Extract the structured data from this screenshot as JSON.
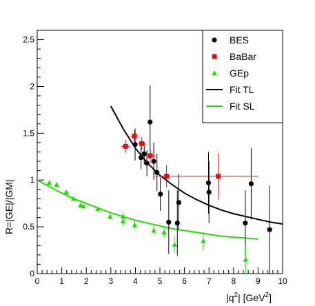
{
  "chart_data": {
    "type": "scatter",
    "xlabel": "|q",
    "xlabel_sup": "2",
    "xlabel_mid": "| [GeV",
    "xlabel_sup2": "2",
    "xlabel_end": "]",
    "ylabel": "R=|GE|/|GM|",
    "xlim": [
      0,
      10
    ],
    "ylim": [
      0,
      2.6
    ],
    "x_ticks": [
      0,
      1,
      2,
      3,
      4,
      5,
      6,
      7,
      8,
      9,
      10
    ],
    "y_ticks": [
      0,
      0.5,
      1,
      1.5,
      2,
      2.5
    ],
    "x_tick_labels": [
      "0",
      "1",
      "2",
      "3",
      "4",
      "5",
      "6",
      "7",
      "8",
      "9",
      "10"
    ],
    "y_tick_labels": [
      "0",
      "0.5",
      "1",
      "1.5",
      "2",
      "2.5"
    ],
    "grid": false,
    "legend_position": "top-right",
    "colors": {
      "bes": "#000000",
      "babar": "#dd1111",
      "gep": "#22dd00",
      "fit_tl": "#000000",
      "fit_sl": "#22dd00"
    },
    "series": [
      {
        "name": "BES",
        "marker": "circle",
        "points": [
          {
            "x": 3.99,
            "y": 1.38,
            "yerr": 0.17
          },
          {
            "x": 4.23,
            "y": 1.24,
            "yerr": 0.12
          },
          {
            "x": 4.36,
            "y": 1.28,
            "yerr": 0.11
          },
          {
            "x": 4.47,
            "y": 1.18,
            "yerr": 0.14
          },
          {
            "x": 4.6,
            "y": 1.62,
            "yerr": 0.39
          },
          {
            "x": 4.75,
            "y": 1.2,
            "yerr": 0.2
          },
          {
            "x": 4.88,
            "y": 1.08,
            "yerr": 0.2
          },
          {
            "x": 5.02,
            "y": 0.85,
            "yerr": 0.18
          },
          {
            "x": 5.36,
            "y": 0.55,
            "yerr": 0.34
          },
          {
            "x": 5.71,
            "y": 0.54,
            "yerr": 0.35
          },
          {
            "x": 5.77,
            "y": 0.76,
            "yerr": 0.3
          },
          {
            "x": 6.98,
            "y": 0.97,
            "yerr": 0.33
          },
          {
            "x": 7.0,
            "y": 0.87,
            "yerr": 0.33
          },
          {
            "x": 8.48,
            "y": 0.54,
            "yerr": 0.35
          },
          {
            "x": 8.72,
            "y": 0.96,
            "yerr": 0.38
          },
          {
            "x": 9.47,
            "y": 0.47,
            "yerr": 0.47
          }
        ]
      },
      {
        "name": "BaBar",
        "marker": "square",
        "points": [
          {
            "x": 3.6,
            "y": 1.36,
            "xerr": 0.18,
            "yerr": 0.07
          },
          {
            "x": 3.96,
            "y": 1.47,
            "xerr": 0.18,
            "yerr": 0.06
          },
          {
            "x": 4.26,
            "y": 1.39,
            "xerr": 0.15,
            "yerr": 0.07
          },
          {
            "x": 4.61,
            "y": 1.26,
            "xerr": 0.2,
            "yerr": 0.08
          },
          {
            "x": 5.27,
            "y": 1.04,
            "xerr": 0.48,
            "yerr": 0.12
          },
          {
            "x": 7.38,
            "y": 1.04,
            "xerr": 1.63,
            "yerr": 0.25
          }
        ]
      },
      {
        "name": "GEp",
        "marker": "triangle",
        "points": [
          {
            "x": 0.49,
            "y": 0.97
          },
          {
            "x": 0.79,
            "y": 0.95
          },
          {
            "x": 1.18,
            "y": 0.87
          },
          {
            "x": 1.48,
            "y": 0.8
          },
          {
            "x": 1.77,
            "y": 0.73
          },
          {
            "x": 1.88,
            "y": 0.72
          },
          {
            "x": 2.47,
            "y": 0.69
          },
          {
            "x": 2.97,
            "y": 0.61
          },
          {
            "x": 3.5,
            "y": 0.61,
            "yerr": 0.04
          },
          {
            "x": 3.5,
            "y": 0.56,
            "yerr": 0.05
          },
          {
            "x": 3.97,
            "y": 0.52,
            "yerr": 0.05
          },
          {
            "x": 4.75,
            "y": 0.46,
            "yerr": 0.05
          },
          {
            "x": 5.17,
            "y": 0.44,
            "yerr": 0.06
          },
          {
            "x": 5.6,
            "y": 0.31,
            "yerr": 0.09
          },
          {
            "x": 6.77,
            "y": 0.35,
            "yerr": 0.1
          },
          {
            "x": 8.49,
            "y": 0.15,
            "yerr": 0.16
          }
        ]
      }
    ],
    "fits": [
      {
        "name": "Fit TL",
        "x": [
          3.0,
          3.5,
          4.0,
          4.5,
          5.0,
          5.5,
          6.0,
          6.5,
          7.0,
          7.5,
          8.0,
          8.5,
          9.0,
          9.5,
          10.0
        ],
        "y": [
          1.79,
          1.55,
          1.34,
          1.18,
          1.05,
          0.95,
          0.86,
          0.79,
          0.73,
          0.68,
          0.64,
          0.61,
          0.58,
          0.55,
          0.53
        ]
      },
      {
        "name": "Fit SL",
        "x": [
          0.0,
          0.5,
          1.0,
          1.5,
          2.0,
          2.5,
          3.0,
          3.5,
          4.0,
          4.5,
          5.0,
          5.5,
          6.0,
          6.5,
          7.0,
          7.5,
          8.0,
          8.5,
          9.0
        ],
        "y": [
          1.0,
          0.93,
          0.86,
          0.8,
          0.75,
          0.7,
          0.65,
          0.61,
          0.57,
          0.54,
          0.51,
          0.48,
          0.46,
          0.44,
          0.42,
          0.4,
          0.39,
          0.38,
          0.37
        ]
      }
    ],
    "legend": [
      {
        "label": "BES",
        "key": "bes",
        "kind": "circle"
      },
      {
        "label": "BaBar",
        "key": "babar",
        "kind": "square"
      },
      {
        "label": "GEp",
        "key": "gep",
        "kind": "triangle"
      },
      {
        "label": "Fit TL",
        "key": "fit_tl",
        "kind": "line"
      },
      {
        "label": "Fit SL",
        "key": "fit_sl",
        "kind": "line"
      }
    ]
  }
}
